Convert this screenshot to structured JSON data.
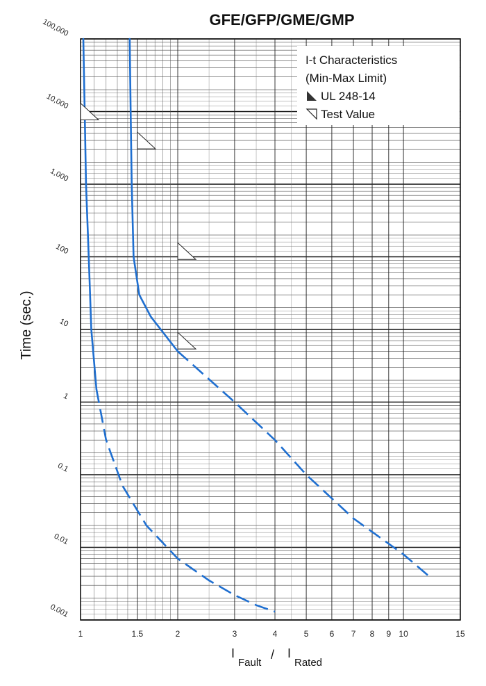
{
  "chart_data": {
    "type": "line",
    "title": "GFE/GFP/GME/GMP",
    "ylabel": "Time (sec.)",
    "xlabel": {
      "part1": "I",
      "sub1": "Fault",
      "sep": "/",
      "part2": "I",
      "sub2": "Rated"
    },
    "x_scale": "log",
    "y_scale": "log",
    "xlim": [
      1,
      15
    ],
    "ylim": [
      0.001,
      100000
    ],
    "x_ticks": [
      {
        "value": 1,
        "label": "1"
      },
      {
        "value": 1.5,
        "label": "1.5"
      },
      {
        "value": 2,
        "label": "2"
      },
      {
        "value": 3,
        "label": "3"
      },
      {
        "value": 4,
        "label": "4"
      },
      {
        "value": 5,
        "label": "5"
      },
      {
        "value": 6,
        "label": "6"
      },
      {
        "value": 7,
        "label": "7"
      },
      {
        "value": 8,
        "label": "8"
      },
      {
        "value": 9,
        "label": "9"
      },
      {
        "value": 10,
        "label": "10"
      },
      {
        "value": 15,
        "label": "15"
      }
    ],
    "y_ticks": [
      {
        "value": 100000,
        "label": "100,000"
      },
      {
        "value": 10000,
        "label": "10,000"
      },
      {
        "value": 1000,
        "label": "1,000"
      },
      {
        "value": 100,
        "label": "100"
      },
      {
        "value": 10,
        "label": "10"
      },
      {
        "value": 1,
        "label": "1"
      },
      {
        "value": 0.1,
        "label": "0.1"
      },
      {
        "value": 0.01,
        "label": "0.01"
      },
      {
        "value": 0.001,
        "label": "0.001"
      }
    ],
    "grid": true,
    "legend": {
      "placement": "top-right",
      "title_lines": [
        "I-t Characteristics",
        "(Min-Max Limit)"
      ],
      "items": [
        {
          "label": "UL 248-14",
          "marker": "filled-triangle"
        },
        {
          "label": "Test Value",
          "marker": "open-triangle"
        }
      ]
    },
    "line_color": "#1f6fd0",
    "series": [
      {
        "role": "min",
        "solid": [
          [
            1.02,
            100000
          ],
          [
            1.03,
            10000
          ],
          [
            1.04,
            1000
          ],
          [
            1.06,
            100
          ],
          [
            1.08,
            10
          ],
          [
            1.12,
            1.5
          ]
        ],
        "dashed": [
          [
            1.12,
            1.5
          ],
          [
            1.2,
            0.3
          ],
          [
            1.35,
            0.07
          ],
          [
            1.6,
            0.02
          ],
          [
            2,
            0.007
          ],
          [
            2.5,
            0.0035
          ],
          [
            3,
            0.0022
          ],
          [
            3.5,
            0.0016
          ],
          [
            4,
            0.0013
          ]
        ]
      },
      {
        "role": "max",
        "solid": [
          [
            1.42,
            100000
          ],
          [
            1.43,
            10000
          ],
          [
            1.44,
            1000
          ],
          [
            1.46,
            100
          ],
          [
            1.52,
            30
          ],
          [
            1.65,
            15
          ],
          [
            2,
            5
          ]
        ],
        "dashed": [
          [
            2,
            5
          ],
          [
            3,
            1
          ],
          [
            4,
            0.3
          ],
          [
            5,
            0.1
          ],
          [
            7,
            0.025
          ],
          [
            10,
            0.008
          ],
          [
            12,
            0.004
          ]
        ]
      }
    ],
    "markers": [
      {
        "kind": "test-value",
        "x": 1.0,
        "y": 10000
      },
      {
        "kind": "test-value",
        "x": 1.5,
        "y": 4000
      },
      {
        "kind": "test-value",
        "x": 2.0,
        "y": 120
      },
      {
        "kind": "test-value",
        "x": 2.0,
        "y": 7
      }
    ]
  }
}
